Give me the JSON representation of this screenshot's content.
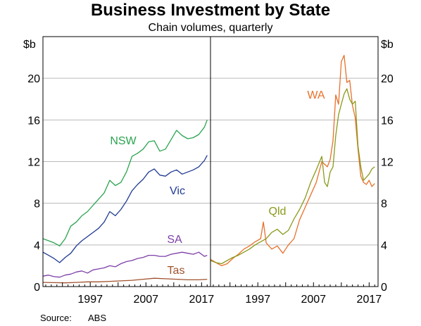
{
  "chart_data": {
    "type": "line",
    "title": "Business Investment by State",
    "subtitle": "Chain volumes, quarterly",
    "unit": "$b",
    "source_label": "Source:",
    "source_value": "ABS",
    "ylim": [
      0,
      24
    ],
    "yticks": [
      0,
      4,
      8,
      12,
      16,
      20
    ],
    "xlim": [
      1988.5,
      2018.6
    ],
    "xticks": [
      1997,
      2007,
      2017
    ],
    "grid": true,
    "panels": [
      {
        "series": [
          {
            "name": "NSW",
            "color": "#2aa44f",
            "x": [
              1988.5,
              1989.5,
              1990.5,
              1991.5,
              1992.5,
              1993.5,
              1994.5,
              1995.5,
              1996.5,
              1997.5,
              1998.5,
              1999.5,
              2000.5,
              2001.5,
              2002.5,
              2003.5,
              2004.5,
              2005.5,
              2006.5,
              2007.5,
              2008.5,
              2009.5,
              2010.5,
              2011.5,
              2012.5,
              2013.5,
              2014.5,
              2015.5,
              2016.5,
              2017.5,
              2018.0
            ],
            "y": [
              4.6,
              4.4,
              4.2,
              3.9,
              4.6,
              5.8,
              6.2,
              6.8,
              7.2,
              7.8,
              8.4,
              9.0,
              10.2,
              9.7,
              10.0,
              11.0,
              12.5,
              12.8,
              13.2,
              13.9,
              14.0,
              13.0,
              13.2,
              14.1,
              15.0,
              14.5,
              14.2,
              14.3,
              14.6,
              15.3,
              16.0
            ]
          },
          {
            "name": "Vic",
            "color": "#1f3a93",
            "x": [
              1988.5,
              1989.5,
              1990.5,
              1991.5,
              1992.5,
              1993.5,
              1994.5,
              1995.5,
              1996.5,
              1997.5,
              1998.5,
              1999.5,
              2000.5,
              2001.5,
              2002.5,
              2003.5,
              2004.5,
              2005.5,
              2006.5,
              2007.5,
              2008.5,
              2009.5,
              2010.5,
              2011.5,
              2012.5,
              2013.5,
              2014.5,
              2015.5,
              2016.5,
              2017.5,
              2018.0
            ],
            "y": [
              3.3,
              3.0,
              2.7,
              2.3,
              2.8,
              3.2,
              3.9,
              4.4,
              4.8,
              5.2,
              5.6,
              6.2,
              7.2,
              6.8,
              7.4,
              8.2,
              9.2,
              9.8,
              10.3,
              11.0,
              11.3,
              10.7,
              10.6,
              11.0,
              11.2,
              10.8,
              11.0,
              11.2,
              11.5,
              12.1,
              12.6
            ]
          },
          {
            "name": "SA",
            "color": "#7d3fa8",
            "x": [
              1988.5,
              1989.5,
              1990.5,
              1991.5,
              1992.5,
              1993.5,
              1994.5,
              1995.5,
              1996.5,
              1997.5,
              1998.5,
              1999.5,
              2000.5,
              2001.5,
              2002.5,
              2003.5,
              2004.5,
              2005.5,
              2006.5,
              2007.5,
              2008.5,
              2009.5,
              2010.5,
              2011.5,
              2012.5,
              2013.5,
              2014.5,
              2015.5,
              2016.5,
              2017.5,
              2018.0
            ],
            "y": [
              1.0,
              1.1,
              0.95,
              0.9,
              1.1,
              1.2,
              1.4,
              1.5,
              1.3,
              1.6,
              1.7,
              1.8,
              2.0,
              1.9,
              2.2,
              2.4,
              2.5,
              2.7,
              2.8,
              3.0,
              3.0,
              2.9,
              2.9,
              3.1,
              3.2,
              3.3,
              3.2,
              3.1,
              3.3,
              2.9,
              3.0
            ]
          },
          {
            "name": "Tas",
            "color": "#a0522d",
            "x": [
              1988.5,
              1990.5,
              1992.5,
              1994.5,
              1996.5,
              1998.5,
              2000.5,
              2002.5,
              2004.5,
              2006.5,
              2008.5,
              2010.5,
              2012.5,
              2014.5,
              2016.5,
              2018.0
            ],
            "y": [
              0.4,
              0.38,
              0.36,
              0.4,
              0.45,
              0.45,
              0.5,
              0.55,
              0.6,
              0.7,
              0.8,
              0.75,
              0.7,
              0.65,
              0.65,
              0.7
            ]
          }
        ]
      },
      {
        "series": [
          {
            "name": "WA",
            "color": "#e8702a",
            "x": [
              1988.5,
              1989.5,
              1990.5,
              1991.5,
              1992.5,
              1993.5,
              1994.5,
              1995.5,
              1996.5,
              1997.5,
              1998.0,
              1998.5,
              1999.5,
              2000.5,
              2001.5,
              2002.5,
              2003.5,
              2004.5,
              2005.5,
              2006.5,
              2007.5,
              2008.5,
              2009.5,
              2010.0,
              2010.5,
              2011.0,
              2011.5,
              2012.0,
              2012.5,
              2013.0,
              2013.5,
              2014.0,
              2014.5,
              2015.0,
              2015.5,
              2016.0,
              2016.5,
              2017.0,
              2017.5,
              2018.0
            ],
            "y": [
              2.6,
              2.3,
              2.0,
              2.2,
              2.7,
              3.1,
              3.6,
              3.9,
              4.3,
              4.6,
              6.2,
              4.2,
              3.6,
              3.9,
              3.2,
              4.0,
              4.6,
              6.4,
              7.6,
              8.8,
              10.0,
              12.0,
              11.5,
              12.2,
              14.0,
              18.4,
              17.5,
              21.6,
              22.2,
              19.6,
              19.8,
              17.4,
              16.2,
              13.2,
              10.6,
              10.0,
              9.8,
              10.2,
              9.6,
              9.9
            ]
          },
          {
            "name": "Qld",
            "color": "#8a9a1b",
            "x": [
              1988.5,
              1989.5,
              1990.5,
              1991.5,
              1992.5,
              1993.5,
              1994.5,
              1995.5,
              1996.5,
              1997.5,
              1998.5,
              1999.5,
              2000.5,
              2001.5,
              2002.5,
              2003.5,
              2004.5,
              2005.5,
              2006.5,
              2007.5,
              2008.5,
              2009.0,
              2009.5,
              2010.0,
              2010.5,
              2011.0,
              2011.5,
              2012.0,
              2012.5,
              2013.0,
              2013.5,
              2014.0,
              2014.5,
              2015.0,
              2015.5,
              2016.0,
              2016.5,
              2017.0,
              2017.5,
              2018.0
            ],
            "y": [
              2.5,
              2.3,
              2.2,
              2.5,
              2.8,
              3.0,
              3.3,
              3.6,
              4.0,
              4.3,
              4.6,
              5.2,
              5.5,
              5.0,
              5.4,
              6.5,
              7.4,
              8.5,
              10.0,
              11.2,
              12.5,
              10.0,
              9.6,
              11.0,
              11.5,
              14.5,
              16.5,
              17.5,
              18.5,
              19.0,
              18.0,
              17.5,
              17.8,
              13.5,
              11.5,
              10.2,
              10.5,
              10.8,
              11.3,
              11.5
            ]
          }
        ]
      }
    ]
  }
}
